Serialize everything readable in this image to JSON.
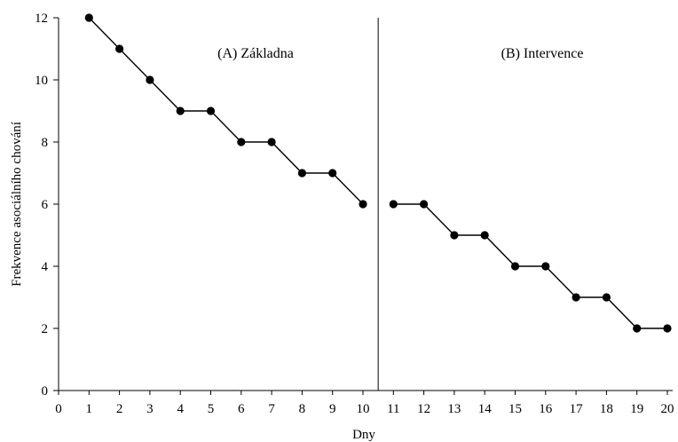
{
  "chart_data": {
    "type": "line",
    "xlabel": "Dny",
    "ylabel": "Frekvence asociálního chování",
    "xlim": [
      0,
      20
    ],
    "ylim": [
      0,
      12
    ],
    "x_ticks": [
      0,
      1,
      2,
      3,
      4,
      5,
      6,
      7,
      8,
      9,
      10,
      11,
      12,
      13,
      14,
      15,
      16,
      17,
      18,
      19,
      20
    ],
    "y_ticks": [
      0,
      2,
      4,
      6,
      8,
      10,
      12
    ],
    "grid": false,
    "phase_divider_x": 10.5,
    "phases": [
      {
        "label": "(A) Základna",
        "x": [
          1,
          2,
          3,
          4,
          5,
          6,
          7,
          8,
          9,
          10
        ],
        "values": [
          12,
          11,
          10,
          9,
          9,
          8,
          8,
          7,
          7,
          6
        ]
      },
      {
        "label": "(B) Intervence",
        "x": [
          11,
          12,
          13,
          14,
          15,
          16,
          17,
          18,
          19,
          20
        ],
        "values": [
          6,
          6,
          5,
          5,
          4,
          4,
          3,
          3,
          2,
          2
        ]
      }
    ],
    "colors": {
      "line": "#000000",
      "marker": "#000000"
    }
  }
}
